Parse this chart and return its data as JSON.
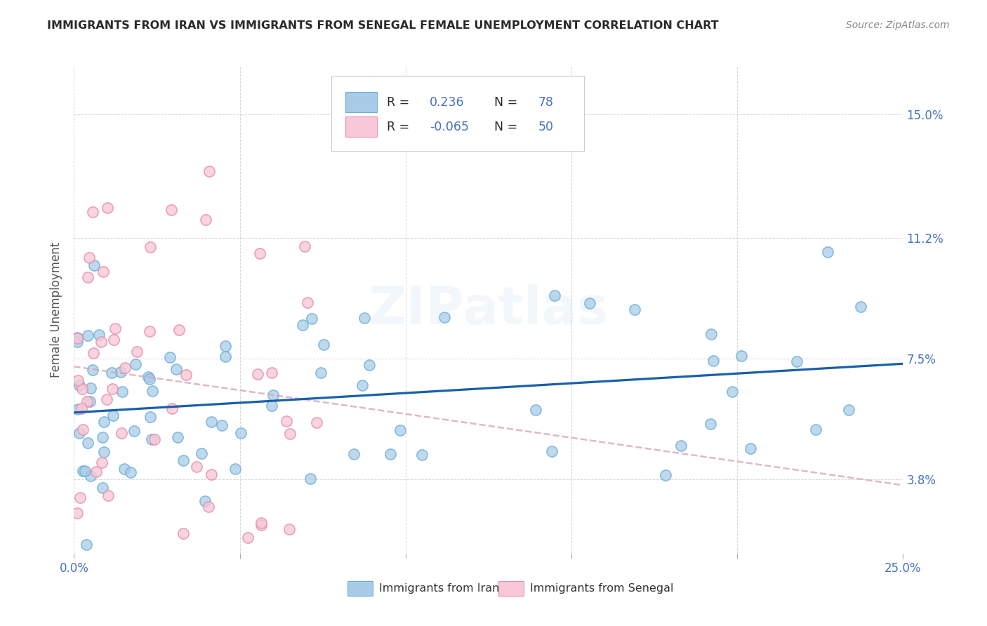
{
  "title": "IMMIGRANTS FROM IRAN VS IMMIGRANTS FROM SENEGAL FEMALE UNEMPLOYMENT CORRELATION CHART",
  "source": "Source: ZipAtlas.com",
  "ylabel": "Female Unemployment",
  "ytick_values": [
    3.8,
    7.5,
    11.2,
    15.0
  ],
  "ytick_labels": [
    "3.8%",
    "7.5%",
    "11.2%",
    "15.0%"
  ],
  "xtick_values": [
    0,
    5,
    10,
    15,
    20,
    25
  ],
  "xlim": [
    0,
    25
  ],
  "ylim": [
    1.5,
    16.5
  ],
  "iran_color": "#a8cce8",
  "iran_edge_color": "#6baed6",
  "senegal_color": "#f8c8d8",
  "senegal_edge_color": "#e891a8",
  "iran_line_color": "#1a5fa8",
  "senegal_line_color": "#d4a0b8",
  "title_color": "#2a2a2a",
  "source_color": "#888888",
  "axis_label_color": "#555555",
  "right_tick_color": "#4472c4",
  "grid_color": "#cccccc",
  "legend_box_edge": "#cccccc",
  "bottom_legend_iran": "Immigrants from Iran",
  "bottom_legend_senegal": "Immigrants from Senegal"
}
